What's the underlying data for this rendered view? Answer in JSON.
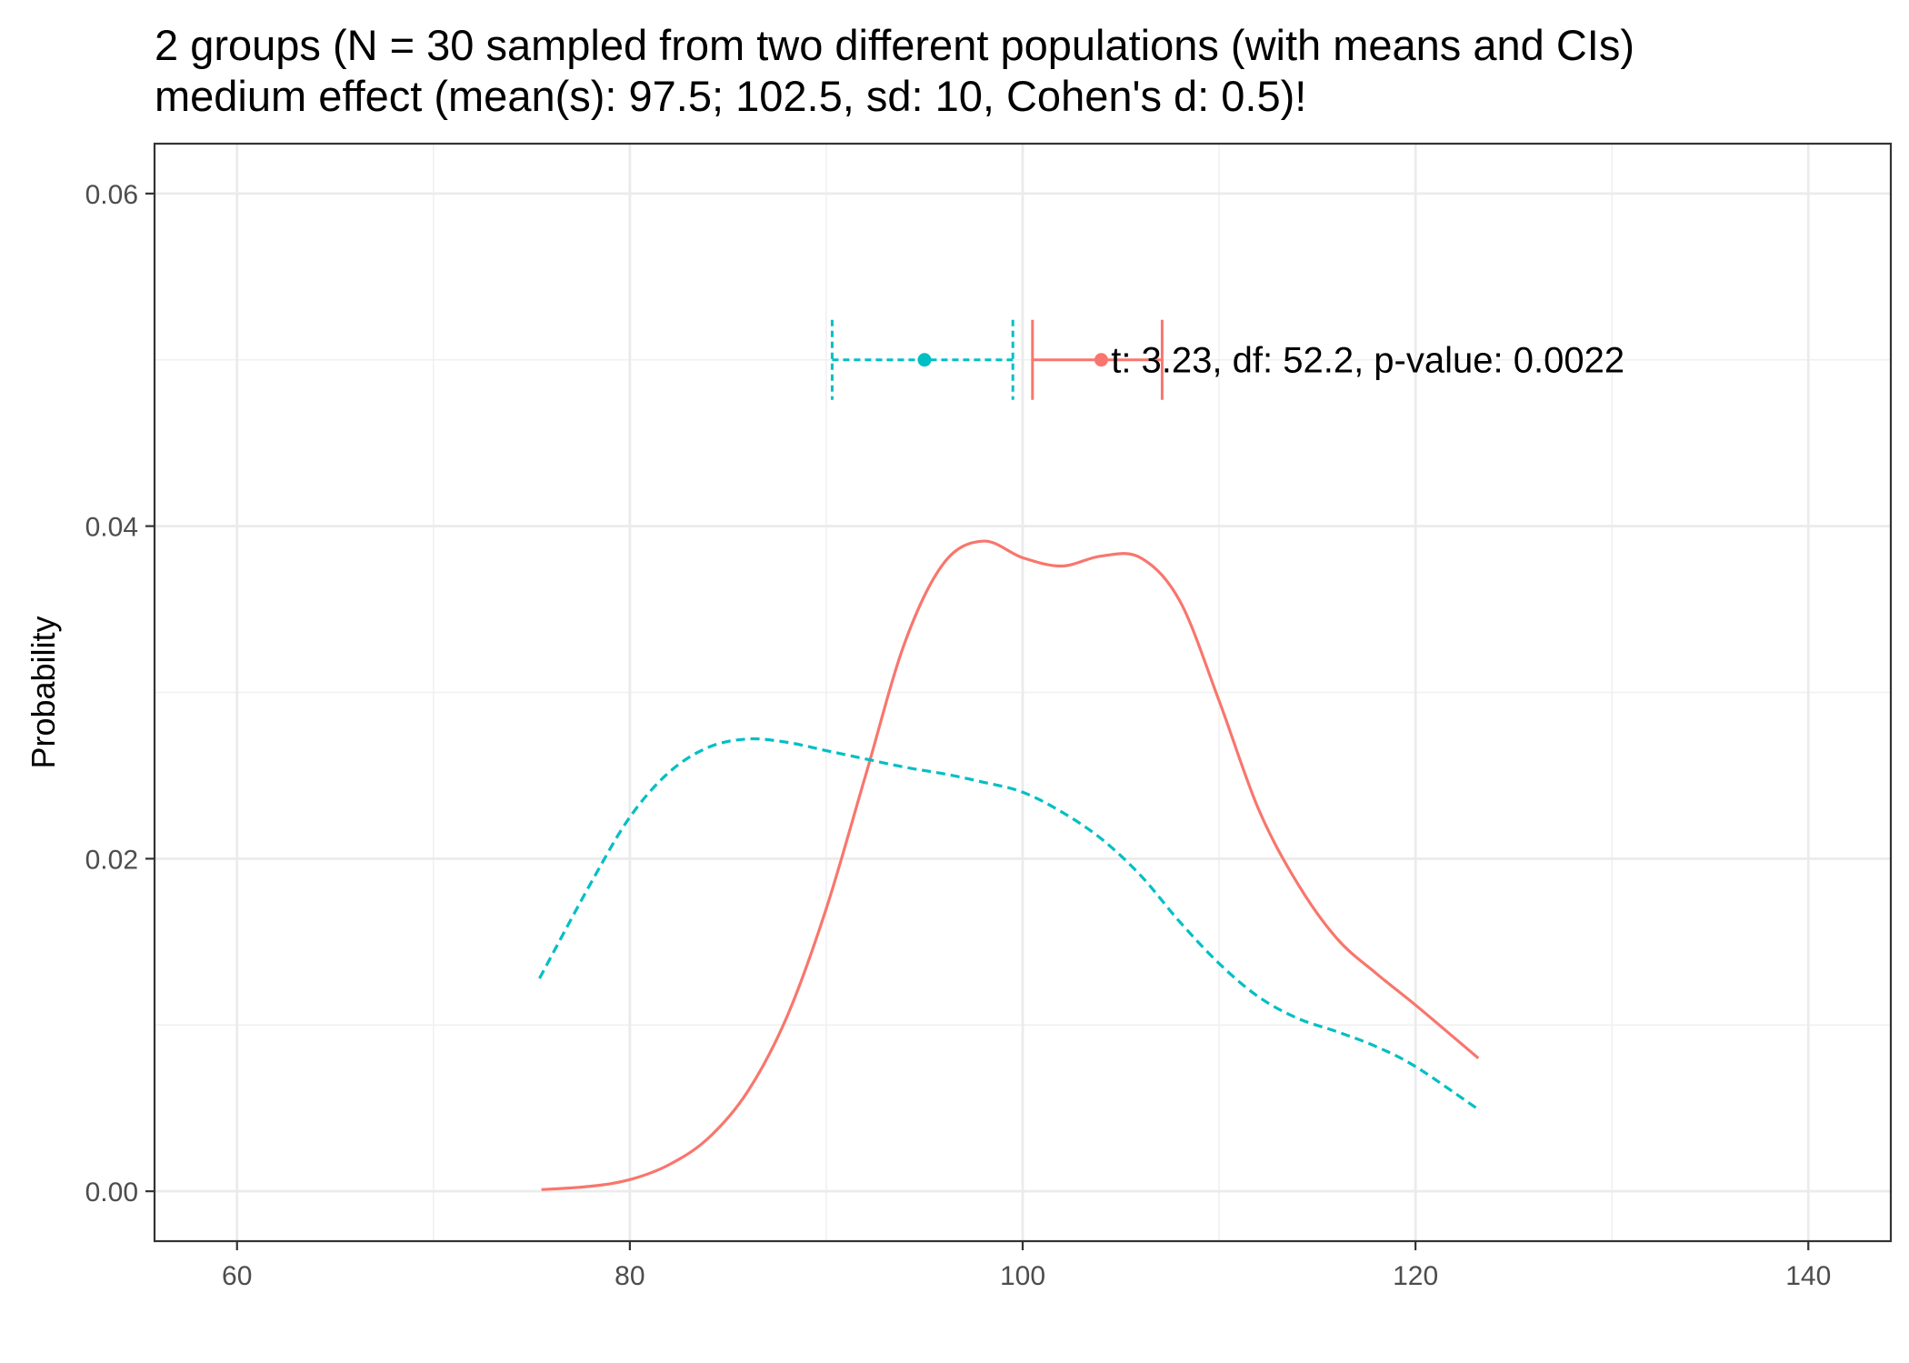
{
  "chart_data": {
    "type": "line",
    "title_lines": [
      "2 groups (N = 30 sampled from two different populations (with means and CIs)",
      "medium effect (mean(s): 97.5; 102.5, sd: 10, Cohen's d: 0.5)!"
    ],
    "xlabel": "",
    "ylabel": "Probability",
    "xlim": [
      55.8,
      144.2
    ],
    "ylim": [
      -0.003,
      0.063
    ],
    "x_ticks": [
      60,
      80,
      100,
      120,
      140
    ],
    "y_ticks": [
      0.0,
      0.02,
      0.04,
      0.06
    ],
    "y_tick_labels": [
      "0.00",
      "0.02",
      "0.04",
      "0.06"
    ],
    "grid": true,
    "series": [
      {
        "color": "#F8766D",
        "linetype": "solid",
        "x": [
          75.5,
          78,
          80,
          82,
          84,
          86,
          88,
          90,
          92,
          94,
          96,
          98,
          100,
          102,
          104,
          106,
          108,
          110,
          112,
          114,
          116,
          118,
          120,
          123.2
        ],
        "y": [
          0.0001,
          0.0003,
          0.0007,
          0.0016,
          0.0032,
          0.006,
          0.0105,
          0.017,
          0.025,
          0.033,
          0.0378,
          0.0391,
          0.0381,
          0.0376,
          0.0382,
          0.0381,
          0.0355,
          0.0295,
          0.023,
          0.0185,
          0.0152,
          0.0131,
          0.0112,
          0.008
        ]
      },
      {
        "color": "#00BFC4",
        "linetype": "dashed",
        "x": [
          75.4,
          78,
          80,
          82,
          84,
          86,
          88,
          90,
          92,
          94,
          96,
          98,
          100,
          102,
          104,
          106,
          108,
          110,
          112,
          114,
          116,
          118,
          120,
          123.1
        ],
        "y": [
          0.0128,
          0.0185,
          0.0225,
          0.0252,
          0.0267,
          0.0272,
          0.027,
          0.0265,
          0.026,
          0.0255,
          0.0251,
          0.0246,
          0.024,
          0.0228,
          0.0212,
          0.019,
          0.0162,
          0.0137,
          0.0117,
          0.0104,
          0.0096,
          0.0087,
          0.0075,
          0.005
        ]
      }
    ],
    "error_bars": [
      {
        "color": "#00BFC4",
        "linetype": "dashed",
        "mean": 95.0,
        "lower": 90.3,
        "upper": 99.5,
        "y": 0.05
      },
      {
        "color": "#F8766D",
        "linetype": "solid",
        "mean": 104.0,
        "lower": 100.5,
        "upper": 107.1,
        "y": 0.05
      }
    ],
    "annotation": {
      "text": "t: 3.23, df: 52.2, p-value: 0.0022",
      "x": 104.5,
      "y": 0.05
    }
  }
}
